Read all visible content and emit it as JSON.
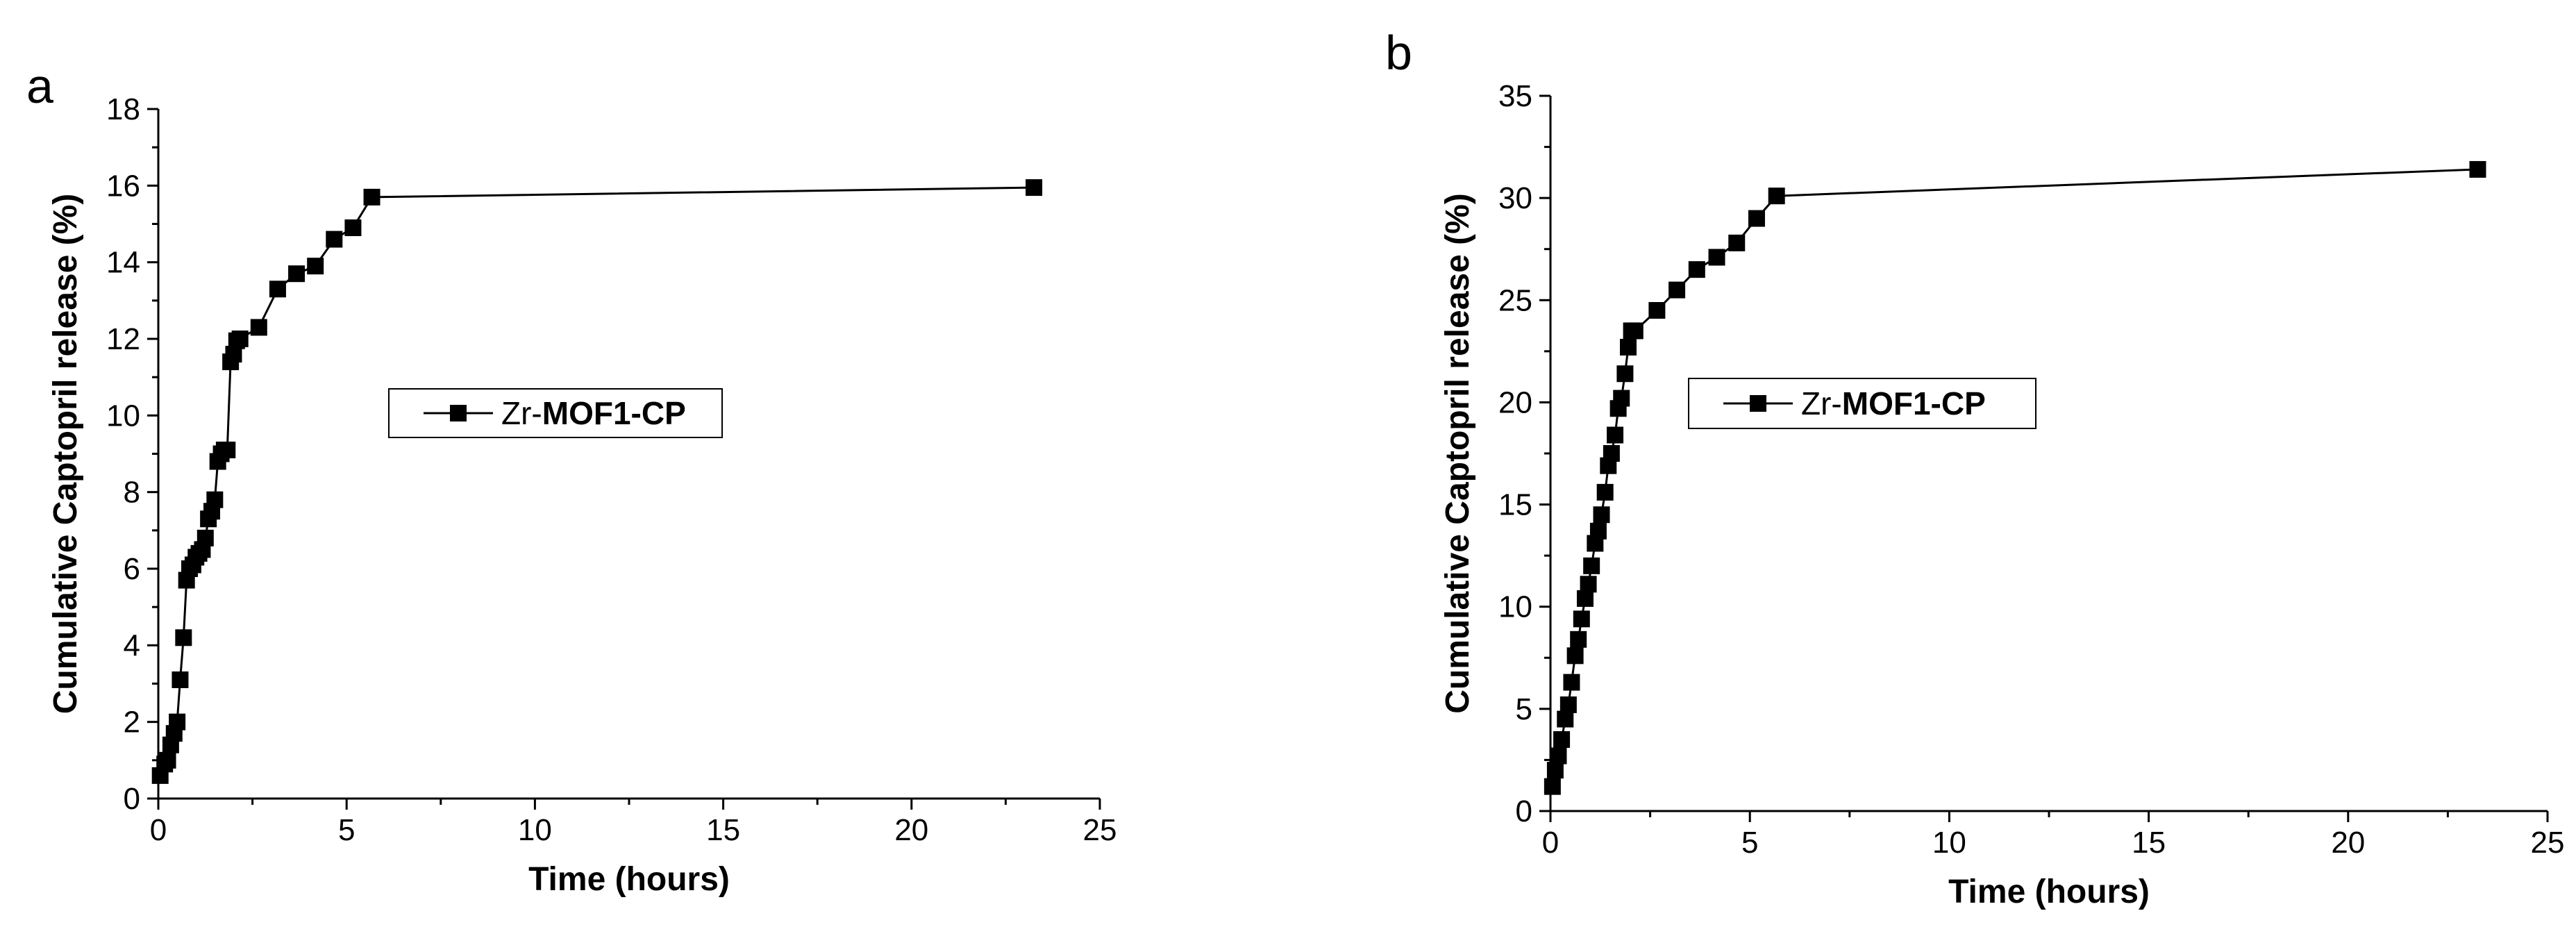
{
  "chart_data": [
    {
      "panel": "a",
      "type": "line",
      "xlabel": "Time (hours)",
      "ylabel": "Cumulative Captopril release (%)",
      "xlim": [
        0,
        25
      ],
      "ylim": [
        0,
        18
      ],
      "x_ticks": [
        "0",
        "5",
        "10",
        "15",
        "20",
        "25"
      ],
      "y_ticks": [
        "0",
        "2",
        "4",
        "6",
        "8",
        "10",
        "12",
        "14",
        "16",
        "18"
      ],
      "grid": false,
      "legend": {
        "position": "center",
        "prefix": "Zr-",
        "label_bold": "MOF1-CP"
      },
      "series": [
        {
          "name": "Zr-MOF1-CP",
          "marker": "square",
          "color": "#000000",
          "x": [
            0.05,
            0.17,
            0.25,
            0.33,
            0.42,
            0.5,
            0.58,
            0.67,
            0.75,
            0.83,
            0.92,
            1.0,
            1.08,
            1.17,
            1.25,
            1.33,
            1.42,
            1.5,
            1.58,
            1.67,
            1.75,
            1.83,
            1.92,
            2.0,
            2.08,
            2.17,
            2.67,
            3.17,
            3.67,
            4.17,
            4.67,
            5.17,
            5.67,
            23.25
          ],
          "y": [
            0.6,
            0.9,
            1.0,
            1.4,
            1.7,
            2.0,
            3.1,
            4.2,
            5.7,
            6.0,
            6.1,
            6.3,
            6.4,
            6.5,
            6.8,
            7.3,
            7.5,
            7.8,
            8.8,
            9.0,
            9.1,
            9.1,
            11.4,
            11.6,
            11.95,
            12.0,
            12.3,
            13.3,
            13.7,
            13.9,
            14.6,
            14.9,
            15.7,
            15.95
          ]
        }
      ]
    },
    {
      "panel": "b",
      "type": "line",
      "xlabel": "Time (hours)",
      "ylabel": "Cumulative Captopril release (%)",
      "xlim": [
        0,
        25
      ],
      "ylim": [
        0,
        35
      ],
      "x_ticks": [
        "0",
        "5",
        "10",
        "15",
        "20",
        "25"
      ],
      "y_ticks": [
        "0",
        "5",
        "10",
        "15",
        "20",
        "25",
        "30",
        "35"
      ],
      "grid": false,
      "legend": {
        "position": "center",
        "prefix": "Zr-",
        "label_bold": "MOF1-CP"
      },
      "series": [
        {
          "name": "Zr-MOF1-CP",
          "marker": "square",
          "color": "#000000",
          "x": [
            0.05,
            0.12,
            0.2,
            0.28,
            0.37,
            0.45,
            0.53,
            0.62,
            0.7,
            0.78,
            0.87,
            0.95,
            1.03,
            1.12,
            1.2,
            1.28,
            1.37,
            1.45,
            1.53,
            1.62,
            1.7,
            1.78,
            1.87,
            1.95,
            2.03,
            2.12,
            2.67,
            3.17,
            3.67,
            4.17,
            4.67,
            5.17,
            5.67,
            23.25
          ],
          "y": [
            1.2,
            2.0,
            2.7,
            3.5,
            4.5,
            5.2,
            6.3,
            7.6,
            8.4,
            9.4,
            10.4,
            11.1,
            12.0,
            13.1,
            13.7,
            14.5,
            15.6,
            16.9,
            17.5,
            18.4,
            19.7,
            20.2,
            21.4,
            22.7,
            23.5,
            23.5,
            24.5,
            25.5,
            26.5,
            27.1,
            27.8,
            29.0,
            30.1,
            31.4
          ]
        }
      ]
    }
  ],
  "panel_labels": [
    "a",
    "b"
  ]
}
